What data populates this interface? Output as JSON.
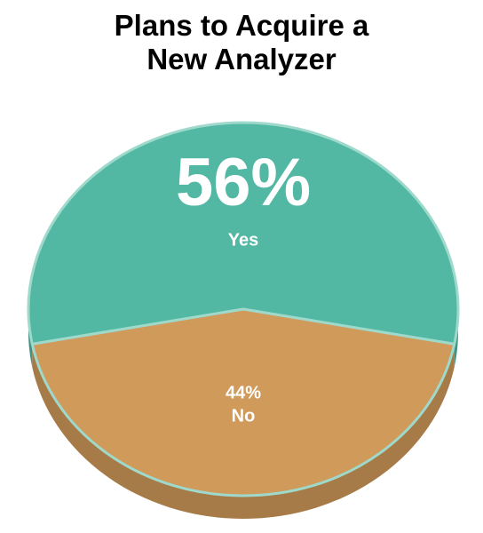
{
  "chart_data": {
    "type": "pie",
    "title": "Plans to Acquire a New Analyzer",
    "categories": [
      "Yes",
      "No"
    ],
    "values": [
      56,
      44
    ],
    "value_labels": [
      "56%",
      "44%"
    ],
    "colors": [
      "#52b8a4",
      "#cf9a5a"
    ]
  }
}
